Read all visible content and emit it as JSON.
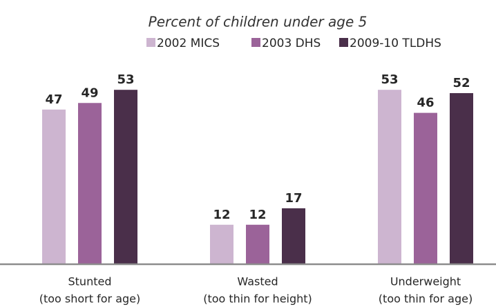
{
  "chart_data": {
    "type": "bar",
    "title": "Percent of children under age 5",
    "categories": [
      [
        "Stunted",
        "(too short for age)"
      ],
      [
        "Wasted",
        "(too thin for height)"
      ],
      [
        "Underweight",
        "(too thin for age)"
      ]
    ],
    "series": [
      {
        "name": "2002 MICS",
        "color": "#cdb5d0",
        "values": [
          47,
          12,
          53
        ]
      },
      {
        "name": "2003 DHS",
        "color": "#9b6399",
        "values": [
          49,
          12,
          46
        ]
      },
      {
        "name": "2009-10 TLDHS",
        "color": "#4a2f4a",
        "values": [
          53,
          17,
          52
        ]
      }
    ]
  }
}
